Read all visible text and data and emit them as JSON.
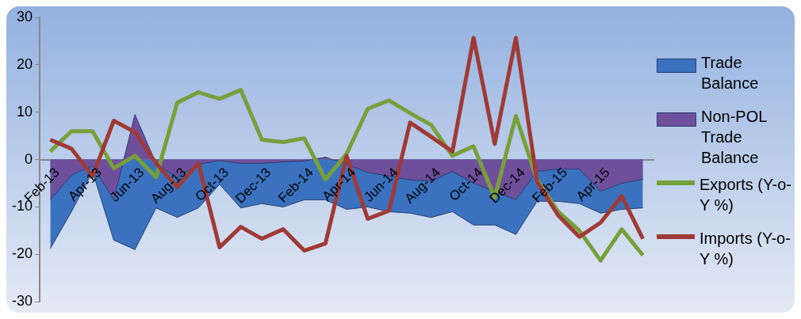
{
  "chart_data": {
    "type": "line",
    "categories": [
      "Feb-13",
      null,
      "Apr-13",
      null,
      "Jun-13",
      null,
      "Aug-13",
      null,
      "Oct-13",
      null,
      "Dec-13",
      null,
      "Feb-14",
      null,
      "Apr-14",
      null,
      "Jun-14",
      null,
      "Aug-14",
      null,
      "Oct-14",
      null,
      "Dec-14",
      null,
      "Feb-15",
      null,
      "Apr-15",
      null,
      null
    ],
    "series": [
      {
        "name": "Trade Balance",
        "type": "area",
        "color": "#3a72bf",
        "values": [
          -18.8,
          -11,
          -2.5,
          -17,
          -19,
          -10.2,
          -12.2,
          -10.2,
          -5.2,
          -10.2,
          -9.3,
          -10,
          -8.5,
          -8.5,
          -10.5,
          -10,
          -11,
          -11.3,
          -12.2,
          -11,
          -13.8,
          -13.8,
          -15.8,
          -8.8,
          -8.8,
          -9.3,
          -11.3,
          -10.5,
          -10.2
        ]
      },
      {
        "name": "Non-POL Trade Balance",
        "type": "area",
        "color": "#6e4f9c",
        "values": [
          -8.5,
          -3.3,
          -1.3,
          -8.5,
          9.5,
          -0.8,
          -3.8,
          -1,
          -0.2,
          -0.8,
          -0.8,
          -0.5,
          -0.3,
          0.5,
          -1,
          -2.7,
          -3.5,
          -4.3,
          -4.5,
          -2.5,
          -5,
          -6.7,
          -8.5,
          -2.5,
          -2,
          -2,
          -6.7,
          -5,
          -4.2
        ]
      },
      {
        "name": "Exports (Y-o-Y %)",
        "type": "line",
        "color": "#77a03a",
        "values": [
          1.7,
          6,
          6,
          -1.8,
          0.8,
          -3.7,
          12,
          14.2,
          12.8,
          14.7,
          4.2,
          3.7,
          4.5,
          -4.2,
          1.2,
          10.7,
          12.5,
          9.8,
          7.3,
          0.8,
          2.8,
          -8,
          9.2,
          -4.3,
          -11,
          -15,
          -21.3,
          -14.7,
          -20.2
        ]
      },
      {
        "name": "Imports (Y-o-Y %)",
        "type": "line",
        "color": "#a03a35",
        "values": [
          4.2,
          2.3,
          -3.5,
          8.2,
          5.8,
          -0.8,
          -5.8,
          -0.8,
          -18.5,
          -14.2,
          -16.7,
          -14.7,
          -19.2,
          -17.7,
          0.8,
          -12.5,
          -10.8,
          7.8,
          4.8,
          1.7,
          25.7,
          3.3,
          25.7,
          -4.7,
          -11.8,
          -16.3,
          -13.3,
          -7.7,
          -16.7
        ]
      }
    ],
    "ylim": [
      -30,
      30
    ],
    "yticks": [
      -30,
      -20,
      -10,
      0,
      10,
      20,
      30
    ],
    "grid": false,
    "legend": "right"
  }
}
